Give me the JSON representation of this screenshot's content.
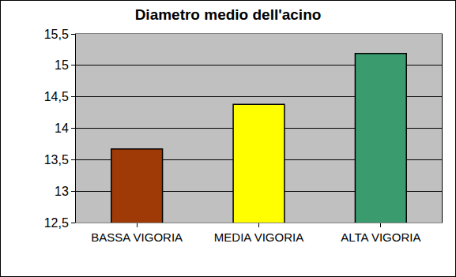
{
  "chart_data": {
    "type": "bar",
    "title": "Diametro medio dell'acino",
    "categories": [
      "BASSA VIGORIA",
      "MEDIA VIGORIA",
      "ALTA VIGORIA"
    ],
    "values": [
      13.67,
      14.38,
      15.19
    ],
    "colors": [
      "#9F3A06",
      "#FFFF00",
      "#3A9C6E"
    ],
    "ylim": [
      12.5,
      15.5
    ],
    "yticks": [
      {
        "value": 12.5,
        "label": "12,5"
      },
      13,
      {
        "value": 13.5,
        "label": "13,5"
      },
      14,
      {
        "value": 14.5,
        "label": "14,5"
      },
      15,
      {
        "value": 15.5,
        "label": "15,5"
      }
    ],
    "grid": true
  }
}
